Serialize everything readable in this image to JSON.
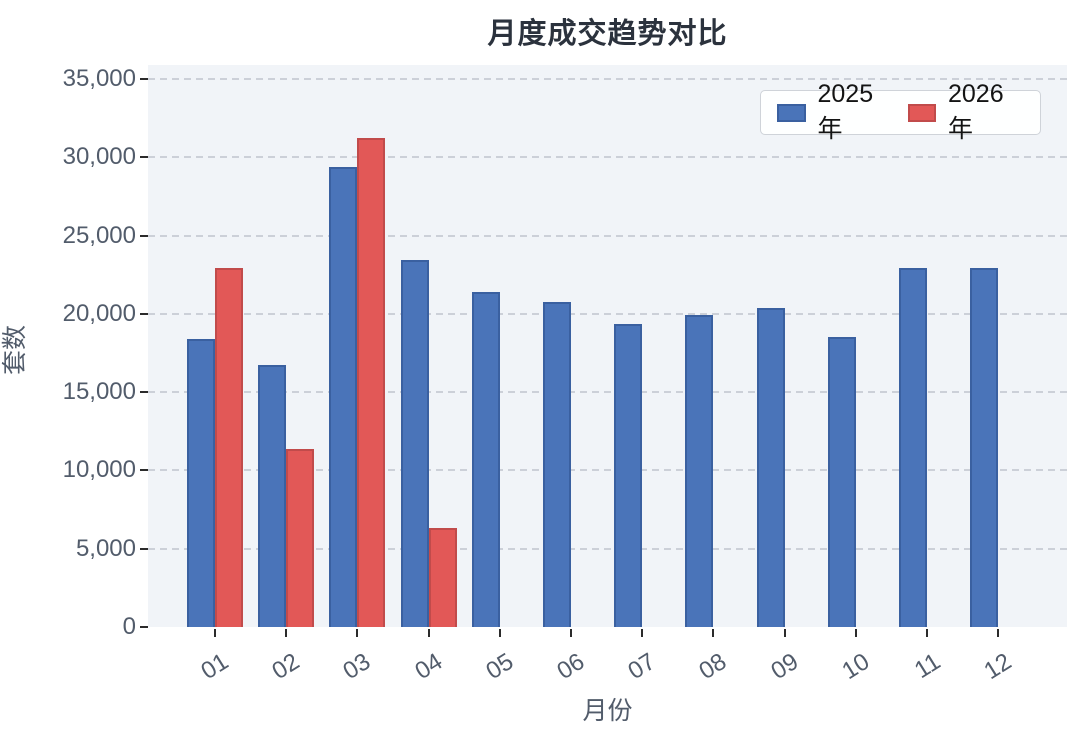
{
  "title": "月度成交趋势对比",
  "colors": {
    "series_2025_fill": "#4a74b9",
    "series_2025_edge": "#3a60a0",
    "series_2026_fill": "#e25857",
    "series_2026_edge": "#c14b4b",
    "plot_background": "#f1f4f8",
    "gridline": "#c6cad2",
    "tick_text": "#525c6b",
    "title_text": "#2b323d"
  },
  "chart_data": {
    "type": "bar",
    "title": "月度成交趋势对比",
    "xlabel": "月份",
    "ylabel": "套数",
    "categories": [
      "01",
      "02",
      "03",
      "04",
      "05",
      "06",
      "07",
      "08",
      "09",
      "10",
      "11",
      "12"
    ],
    "series": [
      {
        "name": "2025年",
        "fill": "#4a74b9",
        "edge": "#3a60a0",
        "values": [
          18400,
          16750,
          29350,
          23450,
          21400,
          20750,
          19350,
          19900,
          20400,
          18500,
          22950,
          22950
        ]
      },
      {
        "name": "2026年",
        "fill": "#e25857",
        "edge": "#c14b4b",
        "values": [
          22900,
          11350,
          31250,
          6300,
          null,
          null,
          null,
          null,
          null,
          null,
          null,
          null
        ]
      }
    ],
    "ylim": [
      0,
      35000
    ],
    "ytick_step": 5000,
    "y_tick_labels": [
      "0",
      "5,000",
      "10,000",
      "15,000",
      "20,000",
      "25,000",
      "30,000",
      "35,000"
    ],
    "grid": true,
    "legend_position": "top-right"
  }
}
